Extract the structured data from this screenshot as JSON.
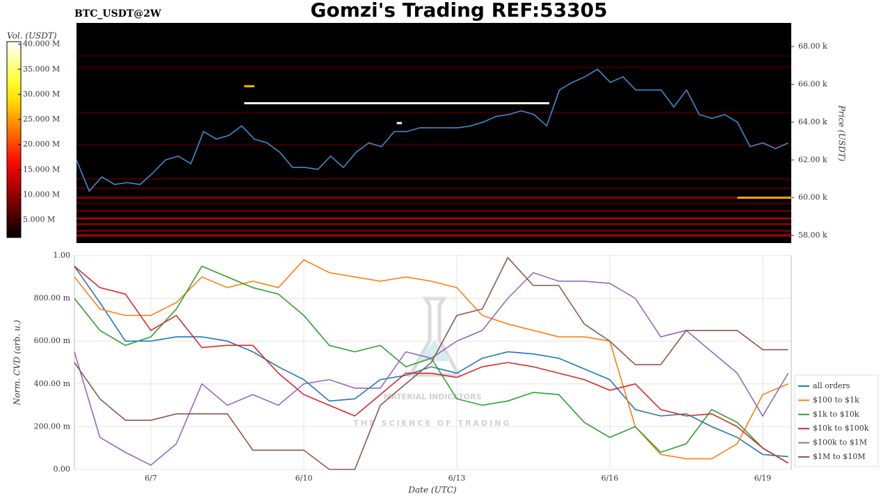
{
  "chart_data": [
    {
      "type": "heatmap",
      "title": "Gomzi's Trading REF:53305",
      "subtitle": "BTC_USDT@2W",
      "ylabel": "Price (USDT)",
      "xlim": [
        5.5,
        19.56
      ],
      "ylim": [
        57600,
        69250
      ],
      "yticks": [
        {
          "value": 58000,
          "label": "58.00 k"
        },
        {
          "value": 60000,
          "label": "60.00 k"
        },
        {
          "value": 62000,
          "label": "62.00 k"
        },
        {
          "value": 64000,
          "label": "64.00 k"
        },
        {
          "value": 66000,
          "label": "66.00 k"
        },
        {
          "value": 68000,
          "label": "68.00 k"
        }
      ],
      "colorbar": {
        "label": "Vol. (USDT)",
        "lim": [
          1500000,
          40500000
        ],
        "ticks": [
          {
            "value": 5000000,
            "label": "5.000 M"
          },
          {
            "value": 10000000,
            "label": "10.000 M"
          },
          {
            "value": 15000000,
            "label": "15.000 M"
          },
          {
            "value": 20000000,
            "label": "20.000 M"
          },
          {
            "value": 25000000,
            "label": "25.000 M"
          },
          {
            "value": 30000000,
            "label": "30.000 M"
          },
          {
            "value": 35000000,
            "label": "35.000 M"
          },
          {
            "value": 40000000,
            "label": "40.000 M"
          }
        ]
      },
      "levels": [
        {
          "price": 58000,
          "volume": 12000000,
          "x0": 5.5,
          "x1": 19.56
        },
        {
          "price": 58250,
          "volume": 8000000,
          "x0": 5.5,
          "x1": 19.56
        },
        {
          "price": 58600,
          "volume": 9000000,
          "x0": 5.5,
          "x1": 19.56
        },
        {
          "price": 58900,
          "volume": 11000000,
          "x0": 5.5,
          "x1": 19.56
        },
        {
          "price": 59300,
          "volume": 7000000,
          "x0": 5.5,
          "x1": 19.56
        },
        {
          "price": 59700,
          "volume": 5000000,
          "x0": 5.5,
          "x1": 19.56
        },
        {
          "price": 60000,
          "volume": 9000000,
          "x0": 5.5,
          "x1": 19.56
        },
        {
          "price": 60000,
          "volume": 26000000,
          "x0": 18.5,
          "x1": 19.56
        },
        {
          "price": 60500,
          "volume": 5000000,
          "x0": 5.5,
          "x1": 19.56
        },
        {
          "price": 61000,
          "volume": 4500000,
          "x0": 5.5,
          "x1": 19.56
        },
        {
          "price": 62800,
          "volume": 4000000,
          "x0": 5.5,
          "x1": 19.56
        },
        {
          "price": 64500,
          "volume": 4000000,
          "x0": 5.5,
          "x1": 19.56
        },
        {
          "price": 66900,
          "volume": 4000000,
          "x0": 5.5,
          "x1": 19.56
        },
        {
          "price": 67500,
          "volume": 3500000,
          "x0": 5.5,
          "x1": 19.56
        },
        {
          "price": 65000,
          "volume": 40000000,
          "x0": 8.8,
          "x1": 14.8
        },
        {
          "price": 65900,
          "volume": 27000000,
          "x0": 8.8,
          "x1": 9.0
        },
        {
          "price": 63950,
          "volume": 40000000,
          "x0": 11.8,
          "x1": 11.9
        }
      ],
      "color": "#3a8fd0",
      "x": [
        5.5,
        5.75,
        6,
        6.25,
        6.5,
        6.75,
        7,
        7.25,
        7.5,
        7.75,
        8,
        8.25,
        8.5,
        8.75,
        9,
        9.25,
        9.5,
        9.75,
        10,
        10.25,
        10.5,
        10.75,
        11,
        11.25,
        11.5,
        11.75,
        12,
        12.25,
        12.5,
        12.75,
        13,
        13.25,
        13.5,
        13.75,
        14,
        14.25,
        14.5,
        14.75,
        15,
        15.25,
        15.5,
        15.75,
        16,
        16.25,
        16.5,
        16.75,
        17,
        17.25,
        17.5,
        17.75,
        18,
        18.25,
        18.5,
        18.75,
        19,
        19.25,
        19.5
      ],
      "values": [
        62000,
        60350,
        61100,
        60700,
        60800,
        60700,
        61300,
        62000,
        62200,
        61800,
        63500,
        63100,
        63300,
        63800,
        63100,
        62900,
        62400,
        61600,
        61600,
        61500,
        62200,
        61600,
        62400,
        62900,
        62700,
        63500,
        63500,
        63700,
        63700,
        63700,
        63700,
        63800,
        64000,
        64300,
        64400,
        64600,
        64400,
        63800,
        65700,
        66100,
        66400,
        66800,
        66100,
        66400,
        65700,
        65700,
        65700,
        64800,
        65700,
        64400,
        64200,
        64400,
        64000,
        62700,
        62900,
        62600,
        62900
      ]
    },
    {
      "type": "line",
      "xlabel": "Date (UTC)",
      "ylabel": "Norm. CVD (arb. u.)",
      "grid": true,
      "legend": "outside right",
      "watermark": [
        "MATERIAL INDICATORS",
        "THE SCIENCE OF TRADING"
      ],
      "xlim": [
        5.5,
        19.56
      ],
      "xticks": [
        {
          "value": 7,
          "label": "6/7"
        },
        {
          "value": 10,
          "label": "6/10"
        },
        {
          "value": 13,
          "label": "6/13"
        },
        {
          "value": 16,
          "label": "6/16"
        },
        {
          "value": 19,
          "label": "6/19"
        }
      ],
      "ylim": [
        0,
        1
      ],
      "yticks": [
        {
          "value": 0,
          "label": "0.00"
        },
        {
          "value": 0.2,
          "label": "200.00 m"
        },
        {
          "value": 0.4,
          "label": "400.00 m"
        },
        {
          "value": 0.6,
          "label": "600.00 m"
        },
        {
          "value": 0.8,
          "label": "800.00 m"
        },
        {
          "value": 1,
          "label": "1.00"
        }
      ],
      "x": [
        5.5,
        6,
        6.5,
        7,
        7.5,
        8,
        8.5,
        9,
        9.5,
        10,
        10.5,
        11,
        11.5,
        12,
        12.5,
        13,
        13.5,
        14,
        14.5,
        15,
        15.5,
        16,
        16.5,
        17,
        17.5,
        18,
        18.5,
        19,
        19.5
      ],
      "series": [
        {
          "name": "all orders",
          "color": "#1f77b4",
          "values": [
            0.95,
            0.78,
            0.6,
            0.6,
            0.62,
            0.62,
            0.6,
            0.55,
            0.48,
            0.42,
            0.32,
            0.33,
            0.42,
            0.44,
            0.48,
            0.45,
            0.52,
            0.55,
            0.54,
            0.52,
            0.47,
            0.42,
            0.28,
            0.25,
            0.26,
            0.2,
            0.15,
            0.07,
            0.06
          ]
        },
        {
          "name": "$100 to $1k",
          "color": "#ff7f0e",
          "values": [
            0.9,
            0.75,
            0.72,
            0.72,
            0.78,
            0.9,
            0.85,
            0.88,
            0.85,
            0.98,
            0.92,
            0.9,
            0.88,
            0.9,
            0.88,
            0.85,
            0.72,
            0.68,
            0.65,
            0.62,
            0.62,
            0.6,
            0.2,
            0.07,
            0.05,
            0.05,
            0.12,
            0.35,
            0.4
          ]
        },
        {
          "name": "$1k to $10k",
          "color": "#2ca02c",
          "values": [
            0.8,
            0.65,
            0.58,
            0.62,
            0.75,
            0.95,
            0.9,
            0.85,
            0.82,
            0.72,
            0.58,
            0.55,
            0.58,
            0.48,
            0.52,
            0.33,
            0.3,
            0.32,
            0.36,
            0.35,
            0.22,
            0.15,
            0.2,
            0.08,
            0.12,
            0.28,
            0.22,
            0.1,
            0.03
          ]
        },
        {
          "name": "$10k to $100k",
          "color": "#d62728",
          "values": [
            0.95,
            0.85,
            0.82,
            0.65,
            0.72,
            0.57,
            0.58,
            0.58,
            0.45,
            0.35,
            0.3,
            0.25,
            0.35,
            0.45,
            0.45,
            0.43,
            0.48,
            0.5,
            0.48,
            0.45,
            0.42,
            0.37,
            0.4,
            0.28,
            0.25,
            0.26,
            0.2,
            0.1,
            0.03
          ]
        },
        {
          "name": "$100k to $1M",
          "color": "#9467bd",
          "values": [
            0.55,
            0.15,
            0.08,
            0.02,
            0.12,
            0.4,
            0.3,
            0.35,
            0.3,
            0.4,
            0.42,
            0.38,
            0.38,
            0.55,
            0.52,
            0.6,
            0.65,
            0.8,
            0.92,
            0.88,
            0.88,
            0.87,
            0.8,
            0.62,
            0.65,
            0.55,
            0.45,
            0.25,
            0.45
          ]
        },
        {
          "name": "$1M to $10M",
          "color": "#8c564b",
          "values": [
            0.5,
            0.33,
            0.23,
            0.23,
            0.26,
            0.26,
            0.26,
            0.09,
            0.09,
            0.09,
            0.0,
            0.0,
            0.3,
            0.4,
            0.5,
            0.72,
            0.75,
            0.99,
            0.86,
            0.86,
            0.68,
            0.6,
            0.49,
            0.49,
            0.65,
            0.65,
            0.65,
            0.56,
            0.56
          ]
        }
      ]
    }
  ]
}
